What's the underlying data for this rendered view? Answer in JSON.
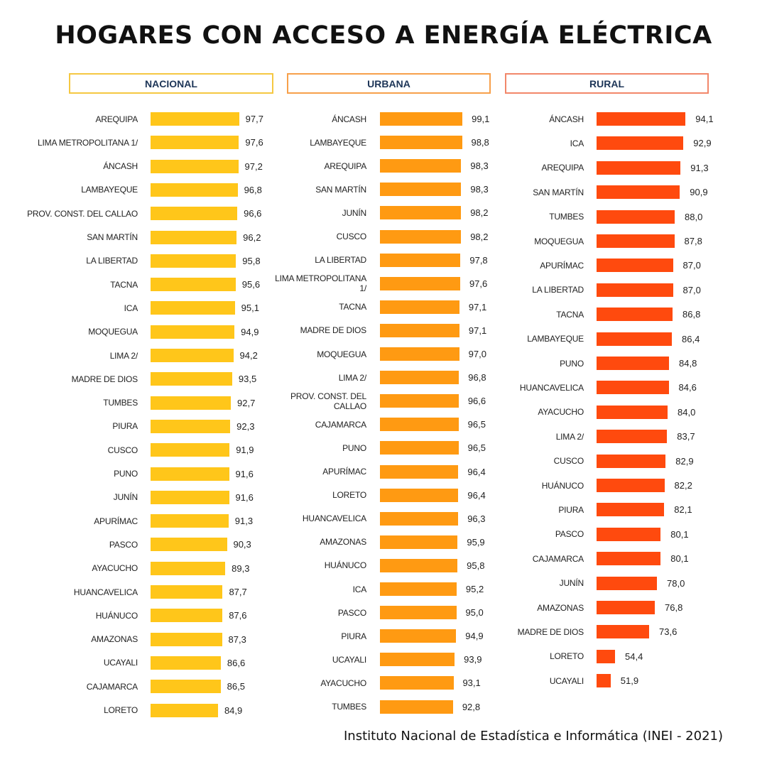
{
  "title": "HOGARES CON ACCESO A ENERGÍA ELÉCTRICA",
  "source": "Instituto Nacional de Estadística e Informática (INEI - 2021)",
  "chart_data": [
    {
      "type": "bar",
      "title": "NACIONAL",
      "color": "#FFC61A",
      "border_color": "#F5C842",
      "xlim": [
        0,
        100
      ],
      "categories": [
        "AREQUIPA",
        "LIMA METROPOLITANA 1/",
        "ÁNCASH",
        "LAMBAYEQUE",
        "PROV. CONST. DEL CALLAO",
        "SAN MARTÍN",
        "LA LIBERTAD",
        "TACNA",
        "ICA",
        "MOQUEGUA",
        "LIMA 2/",
        "MADRE DE DIOS",
        "TUMBES",
        "PIURA",
        "CUSCO",
        "PUNO",
        "JUNÍN",
        "APURÍMAC",
        "PASCO",
        "AYACUCHO",
        "HUANCAVELICA",
        "HUÁNUCO",
        "AMAZONAS",
        "UCAYALI",
        "CAJAMARCA",
        "LORETO"
      ],
      "values": [
        97.7,
        97.6,
        97.2,
        96.8,
        96.6,
        96.2,
        95.8,
        95.6,
        95.1,
        94.9,
        94.2,
        93.5,
        92.7,
        92.3,
        91.9,
        91.6,
        91.6,
        91.3,
        90.3,
        89.3,
        87.7,
        87.6,
        87.3,
        86.6,
        86.5,
        84.9
      ],
      "value_labels": [
        "97,7",
        "97,6",
        "97,2",
        "96,8",
        "96,6",
        "96,2",
        "95,8",
        "95,6",
        "95,1",
        "94,9",
        "94,2",
        "93,5",
        "92,7",
        "92,3",
        "91,9",
        "91,6",
        "91,6",
        "91,3",
        "90,3",
        "89,3",
        "87,7",
        "87,6",
        "87,3",
        "86,6",
        "86,5",
        "84,9"
      ]
    },
    {
      "type": "bar",
      "title": "URBANA",
      "color": "#FF9A12",
      "border_color": "#F7A04A",
      "xlim": [
        0,
        100
      ],
      "categories": [
        "ÁNCASH",
        "LAMBAYEQUE",
        "AREQUIPA",
        "SAN MARTÍN",
        "JUNÍN",
        "CUSCO",
        "LA LIBERTAD",
        "LIMA METROPOLITANA 1/",
        "TACNA",
        "MADRE DE DIOS",
        "MOQUEGUA",
        "LIMA 2/",
        "PROV. CONST. DEL CALLAO",
        "CAJAMARCA",
        "PUNO",
        "APURÍMAC",
        "LORETO",
        "HUANCAVELICA",
        "AMAZONAS",
        "HUÁNUCO",
        "ICA",
        "PASCO",
        "PIURA",
        "UCAYALI",
        "AYACUCHO",
        "TUMBES"
      ],
      "values": [
        99.1,
        98.8,
        98.3,
        98.3,
        98.2,
        98.2,
        97.8,
        97.6,
        97.1,
        97.1,
        97.0,
        96.8,
        96.6,
        96.5,
        96.5,
        96.4,
        96.4,
        96.3,
        95.9,
        95.8,
        95.2,
        95.0,
        94.9,
        93.9,
        93.1,
        92.8
      ],
      "value_labels": [
        "99,1",
        "98,8",
        "98,3",
        "98,3",
        "98,2",
        "98,2",
        "97,8",
        "97,6",
        "97,1",
        "97,1",
        "97,0",
        "96,8",
        "96,6",
        "96,5",
        "96,5",
        "96,4",
        "96,4",
        "96,3",
        "95,9",
        "95,8",
        "95,2",
        "95,0",
        "94,9",
        "93,9",
        "93,1",
        "92,8"
      ]
    },
    {
      "type": "bar",
      "title": "RURAL",
      "color": "#FF4A0E",
      "border_color": "#F2876A",
      "xlim": [
        0,
        100
      ],
      "categories": [
        "ÁNCASH",
        "ICA",
        "AREQUIPA",
        "SAN MARTÍN",
        "TUMBES",
        "MOQUEGUA",
        "APURÍMAC",
        "LA LIBERTAD",
        "TACNA",
        "LAMBAYEQUE",
        "PUNO",
        "HUANCAVELICA",
        "AYACUCHO",
        "LIMA 2/",
        "CUSCO",
        "HUÁNUCO",
        "PIURA",
        "PASCO",
        "CAJAMARCA",
        "JUNÍN",
        "AMAZONAS",
        "MADRE DE DIOS",
        "LORETO",
        "UCAYALI"
      ],
      "values": [
        94.1,
        92.9,
        91.3,
        90.9,
        88.0,
        87.8,
        87.0,
        87.0,
        86.8,
        86.4,
        84.8,
        84.6,
        84.0,
        83.7,
        82.9,
        82.2,
        82.1,
        80.1,
        80.1,
        78.0,
        76.8,
        73.6,
        54.4,
        51.9
      ],
      "value_labels": [
        "94,1",
        "92,9",
        "91,3",
        "90,9",
        "88,0",
        "87,8",
        "87,0",
        "87,0",
        "86,8",
        "86,4",
        "84,8",
        "84,6",
        "84,0",
        "83,7",
        "82,9",
        "82,2",
        "82,1",
        "80,1",
        "80,1",
        "78,0",
        "76,8",
        "73,6",
        "54,4",
        "51,9"
      ]
    }
  ]
}
